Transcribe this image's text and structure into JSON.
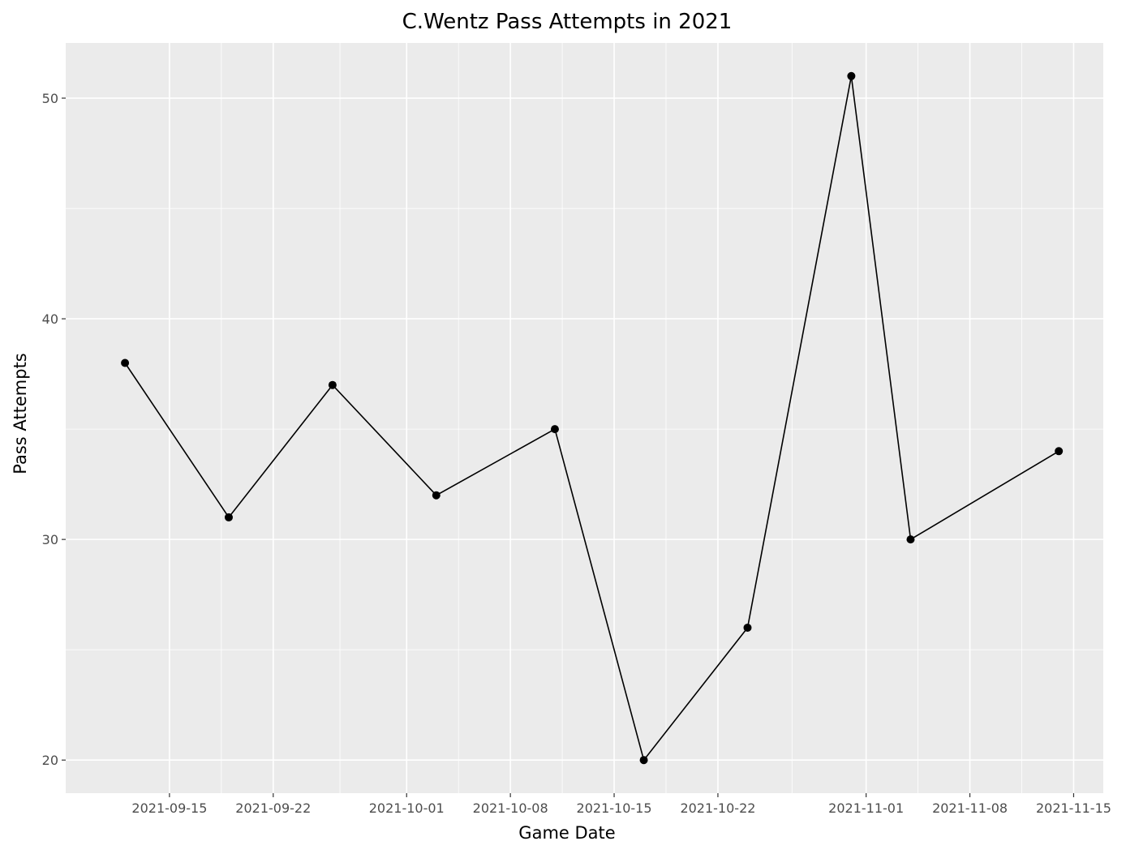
{
  "chart_data": {
    "type": "line",
    "title": "C.Wentz Pass Attempts in 2021",
    "xlabel": "Game Date",
    "ylabel": "Pass Attempts",
    "x_ticks": [
      "2021-09-15",
      "2021-09-22",
      "2021-10-01",
      "2021-10-08",
      "2021-10-15",
      "2021-10-22",
      "2021-11-01",
      "2021-11-08",
      "2021-11-15"
    ],
    "y_ticks": [
      20,
      30,
      40,
      50
    ],
    "xlim": [
      "2021-09-08",
      "2021-11-17"
    ],
    "ylim": [
      18.5,
      52.5
    ],
    "grid": true,
    "colors": {
      "panel": "#ebebeb",
      "grid": "#ffffff",
      "line": "#000000",
      "point": "#000000",
      "tick_text": "#4d4d4d"
    },
    "series": [
      {
        "x": [
          "2021-09-12",
          "2021-09-19",
          "2021-09-26",
          "2021-10-03",
          "2021-10-11",
          "2021-10-17",
          "2021-10-24",
          "2021-10-31",
          "2021-11-04",
          "2021-11-14"
        ],
        "values": [
          38,
          31,
          37,
          32,
          35,
          20,
          26,
          51,
          30,
          34
        ]
      }
    ]
  }
}
